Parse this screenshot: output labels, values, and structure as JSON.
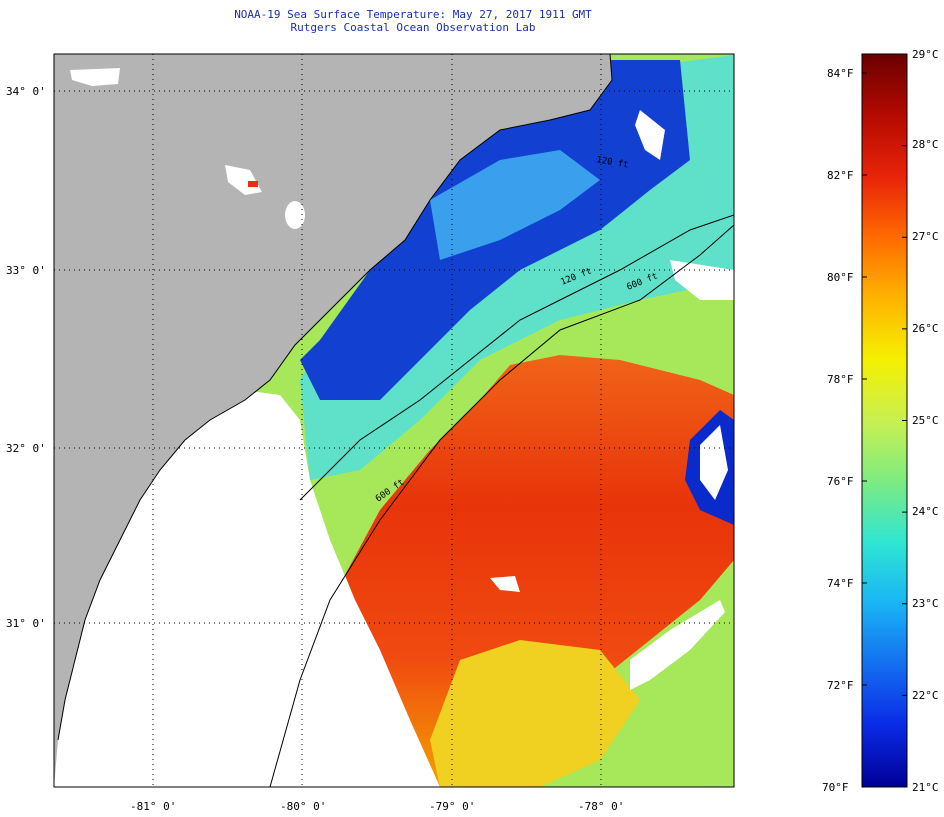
{
  "title": {
    "line1": "NOAA-19 Sea Surface Temperature:  May 27, 2017 1911 GMT",
    "line2": "Rutgers Coastal Ocean Observation Lab"
  },
  "map": {
    "lat_labels": [
      "34° 0'",
      "33° 0'",
      "32° 0'",
      "31° 0'"
    ],
    "lon_labels": [
      "-81° 0'",
      "-80° 0'",
      "-79° 0'",
      "-78° 0'"
    ],
    "isobath_labels": [
      "120 ft",
      "600 ft",
      "600 ft",
      "120 ft"
    ],
    "colors": {
      "land": "#b4b4b4",
      "cloud": "#ffffff",
      "warm": "#e8340a",
      "cool": "#0a2acb"
    }
  },
  "colorbar": {
    "fahrenheit": [
      "84°F",
      "82°F",
      "80°F",
      "78°F",
      "76°F",
      "74°F",
      "72°F",
      "70°F"
    ],
    "celsius": [
      "29°C",
      "28°C",
      "27°C",
      "26°C",
      "25°C",
      "24°C",
      "23°C",
      "22°C",
      "21°C"
    ],
    "gradient": [
      "#6b0000",
      "#b40a00",
      "#e8230a",
      "#ff6a00",
      "#ffb400",
      "#f5f000",
      "#c8f050",
      "#7deb82",
      "#2ee6d2",
      "#19b4f5",
      "#146ef0",
      "#0a2ae6",
      "#000096"
    ]
  }
}
